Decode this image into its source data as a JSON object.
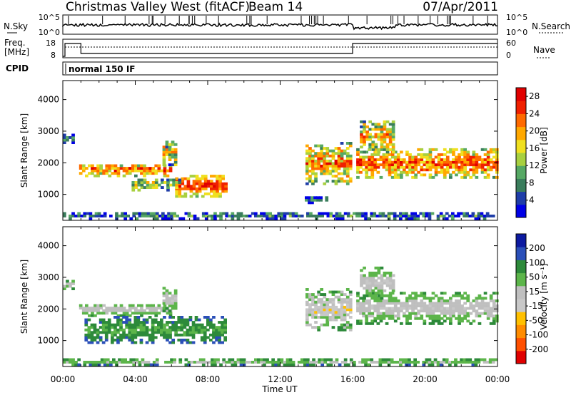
{
  "header": {
    "title": "Christmas Valley West (fitACF)",
    "beam": "Beam 14",
    "date": "07/Apr/2011"
  },
  "nsky_panel": {
    "left_label": "N.Sky",
    "left_ticks": [
      "10^5",
      "10^0"
    ],
    "right_ticks": [
      "10^5",
      "10^0"
    ],
    "right_label": "N.Search"
  },
  "freq_panel": {
    "left_label_1": "Freq.",
    "left_label_2": "[MHz]",
    "left_ticks": [
      "18",
      "8"
    ],
    "right_ticks": [
      "60",
      "0"
    ],
    "right_label": "Nave"
  },
  "cpid": {
    "label": "CPID",
    "value": "normal 150 IF"
  },
  "colors": {
    "power_scale": [
      "#0000e6",
      "#1f3da8",
      "#3a7d5c",
      "#56a864",
      "#a8d040",
      "#f0e020",
      "#ffa800",
      "#ff6a00",
      "#f02000",
      "#e00000"
    ],
    "velocity_scale": [
      "#0d1aa0",
      "#2a4fb8",
      "#2d8a3a",
      "#5cb54a",
      "#bfbfbf",
      "#c8c8c8",
      "#ffc000",
      "#ff8c00",
      "#ff5000",
      "#e00000"
    ]
  },
  "chart_data": [
    {
      "type": "heatmap",
      "ylabel": "Slant Range [km]",
      "xlabel": "",
      "x_ticks": [
        "00:00",
        "04:00",
        "08:00",
        "12:00",
        "16:00",
        "20:00",
        "00:00"
      ],
      "x_range_hours": [
        0,
        24
      ],
      "y_ticks": [
        1000,
        2000,
        3000,
        4000
      ],
      "ylim": [
        180,
        4600
      ],
      "colorbar": {
        "label": "Power [dB]",
        "ticks": [
          4,
          8,
          12,
          16,
          20,
          24,
          28
        ],
        "range": [
          0,
          30
        ]
      },
      "echo_regions": [
        {
          "t0": 0.9,
          "t1": 6.0,
          "r0": 1550,
          "r1": 1950,
          "level": 0.78,
          "spread": 0.22
        },
        {
          "t0": 6.2,
          "t1": 9.0,
          "r0": 900,
          "r1": 1600,
          "level": 0.88,
          "spread": 0.12
        },
        {
          "t0": 3.8,
          "t1": 6.5,
          "r0": 1100,
          "r1": 1500,
          "level": 0.45,
          "spread": 0.25
        },
        {
          "t0": 5.5,
          "t1": 6.2,
          "r0": 1900,
          "r1": 2700,
          "level": 0.55,
          "spread": 0.3
        },
        {
          "t0": 0.0,
          "t1": 0.6,
          "r0": 2600,
          "r1": 2850,
          "level": 0.3,
          "spread": 0.15
        },
        {
          "t0": 13.4,
          "t1": 15.9,
          "r0": 1300,
          "r1": 2600,
          "level": 0.72,
          "spread": 0.25
        },
        {
          "t0": 13.2,
          "t1": 14.6,
          "r0": 700,
          "r1": 900,
          "level": 0.25,
          "spread": 0.15
        },
        {
          "t0": 16.2,
          "t1": 24.0,
          "r0": 1500,
          "r1": 2400,
          "level": 0.8,
          "spread": 0.2
        },
        {
          "t0": 16.4,
          "t1": 18.2,
          "r0": 2300,
          "r1": 3300,
          "level": 0.6,
          "spread": 0.25
        },
        {
          "t0": 0.0,
          "t1": 24.0,
          "r0": 200,
          "r1": 400,
          "level": 0.25,
          "spread": 0.2
        }
      ]
    },
    {
      "type": "heatmap",
      "ylabel": "Slant Range [km]",
      "xlabel": "Time UT",
      "x_ticks": [
        "00:00",
        "04:00",
        "08:00",
        "12:00",
        "16:00",
        "20:00",
        "00:00"
      ],
      "x_range_hours": [
        0,
        24
      ],
      "y_ticks": [
        1000,
        2000,
        3000,
        4000
      ],
      "ylim": [
        180,
        4600
      ],
      "colorbar": {
        "label": "Velocity [m s⁻¹]",
        "ticks": [
          200,
          100,
          50,
          15,
          -15,
          -50,
          -100,
          -200
        ],
        "range": [
          -250,
          250
        ]
      },
      "echo_regions": [
        {
          "t0": 0.9,
          "t1": 6.0,
          "r0": 1750,
          "r1": 2150,
          "level": 0.5,
          "spread": 0.04
        },
        {
          "t0": 1.2,
          "t1": 9.0,
          "r0": 900,
          "r1": 1750,
          "level": 0.32,
          "spread": 0.06
        },
        {
          "t0": 5.5,
          "t1": 6.2,
          "r0": 1900,
          "r1": 2700,
          "level": 0.5,
          "spread": 0.05
        },
        {
          "t0": 0.0,
          "t1": 0.6,
          "r0": 2600,
          "r1": 2850,
          "level": 0.5,
          "spread": 0.03
        },
        {
          "t0": 13.4,
          "t1": 15.9,
          "r0": 1300,
          "r1": 2600,
          "level": 0.55,
          "spread": 0.1
        },
        {
          "t0": 16.2,
          "t1": 24.0,
          "r0": 1500,
          "r1": 2500,
          "level": 0.5,
          "spread": 0.03
        },
        {
          "t0": 16.4,
          "t1": 18.2,
          "r0": 2300,
          "r1": 3300,
          "level": 0.5,
          "spread": 0.04
        },
        {
          "t0": 0.0,
          "t1": 24.0,
          "r0": 200,
          "r1": 400,
          "level": 0.42,
          "spread": 0.08
        }
      ]
    }
  ]
}
